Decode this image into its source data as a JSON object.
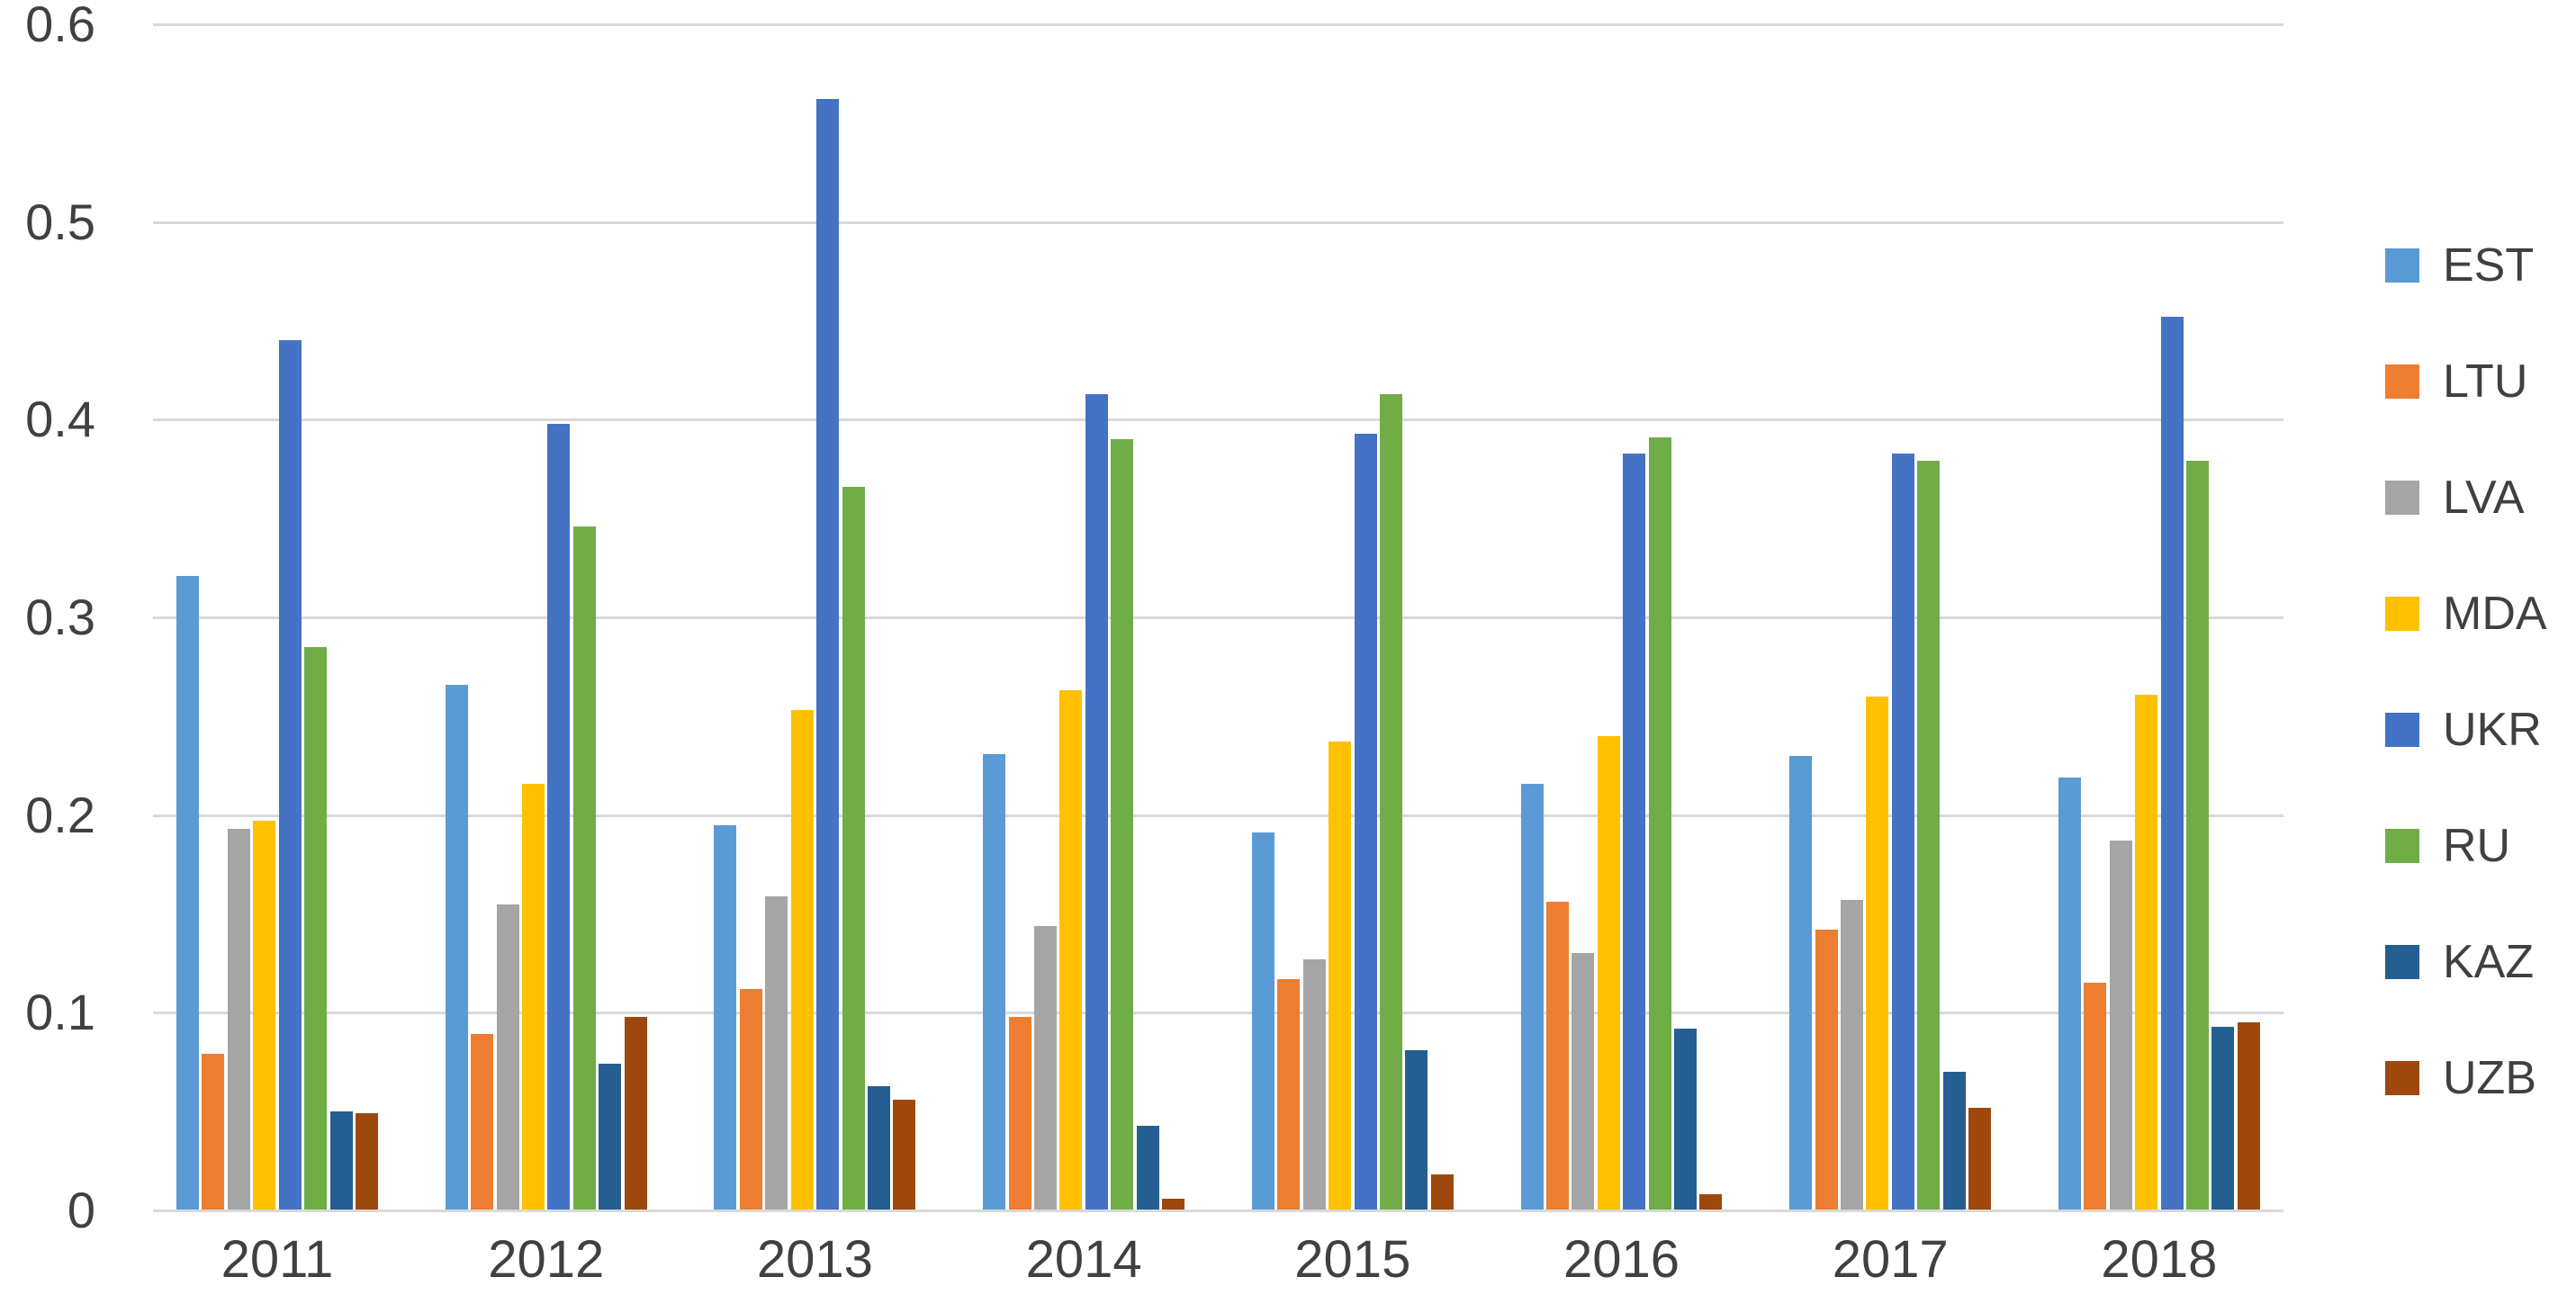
{
  "chart_data": {
    "type": "bar",
    "title": "",
    "xlabel": "",
    "ylabel": "",
    "ylim": [
      0,
      0.6
    ],
    "yticks": [
      "0",
      "0.1",
      "0.2",
      "0.3",
      "0.4",
      "0.5",
      "0.6"
    ],
    "ytick_values": [
      0,
      0.1,
      0.2,
      0.3,
      0.4,
      0.5,
      0.6
    ],
    "grid": true,
    "legend_position": "right",
    "background_color": "#FFFFFF",
    "gridline_color": "#D9D9D9",
    "label_color": "#404040",
    "categories": [
      "2011",
      "2012",
      "2013",
      "2014",
      "2015",
      "2016",
      "2017",
      "2018"
    ],
    "series": [
      {
        "name": "EST",
        "color": "#5B9BD5",
        "values": [
          0.321,
          0.266,
          0.195,
          0.231,
          0.191,
          0.216,
          0.23,
          0.219
        ]
      },
      {
        "name": "LTU",
        "color": "#ED7D31",
        "values": [
          0.079,
          0.089,
          0.112,
          0.098,
          0.117,
          0.156,
          0.142,
          0.115
        ]
      },
      {
        "name": "LVA",
        "color": "#A5A5A5",
        "values": [
          0.193,
          0.155,
          0.159,
          0.144,
          0.127,
          0.13,
          0.157,
          0.187
        ]
      },
      {
        "name": "MDA",
        "color": "#FFC000",
        "values": [
          0.197,
          0.216,
          0.253,
          0.263,
          0.237,
          0.24,
          0.26,
          0.261
        ]
      },
      {
        "name": "UKR",
        "color": "#4472C4",
        "values": [
          0.44,
          0.398,
          0.562,
          0.413,
          0.393,
          0.383,
          0.383,
          0.452
        ]
      },
      {
        "name": "RU",
        "color": "#70AD47",
        "values": [
          0.285,
          0.346,
          0.366,
          0.39,
          0.413,
          0.391,
          0.379,
          0.379
        ]
      },
      {
        "name": "KAZ",
        "color": "#255E91",
        "values": [
          0.05,
          0.074,
          0.063,
          0.043,
          0.081,
          0.092,
          0.07,
          0.093
        ]
      },
      {
        "name": "UZB",
        "color": "#9E480E",
        "values": [
          0.049,
          0.098,
          0.056,
          0.006,
          0.018,
          0.008,
          0.052,
          0.095
        ]
      }
    ]
  }
}
